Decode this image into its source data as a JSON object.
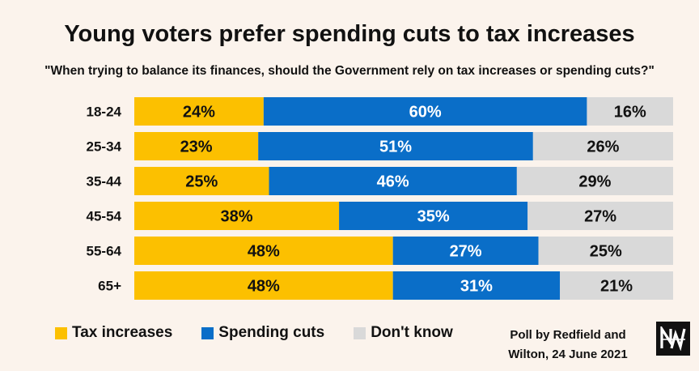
{
  "title": "Young voters prefer spending cuts to tax increases",
  "subtitle": "\"When trying to balance its finances, should the Government rely on tax increases or spending cuts?\"",
  "chart_data": {
    "type": "bar",
    "orientation": "horizontal",
    "stacked": true,
    "percent_stacked": true,
    "categories": [
      "18-24",
      "25-34",
      "35-44",
      "45-54",
      "55-64",
      "65+"
    ],
    "series": [
      {
        "name": "Tax increases",
        "color": "#fcc000",
        "values": [
          24,
          23,
          25,
          38,
          48,
          48
        ]
      },
      {
        "name": "Spending cuts",
        "color": "#0a6ec8",
        "values": [
          60,
          51,
          46,
          35,
          27,
          31
        ]
      },
      {
        "name": "Don't know",
        "color": "#d9d9d9",
        "values": [
          16,
          26,
          29,
          27,
          25,
          21
        ]
      }
    ],
    "value_suffix": "%",
    "legend_position": "bottom-left",
    "grid": false
  },
  "source": {
    "line1": "Poll by Redfield and",
    "line2": "Wilton, 24 June 2021"
  },
  "logo": {
    "icon": "new-statesman-logo-icon"
  }
}
